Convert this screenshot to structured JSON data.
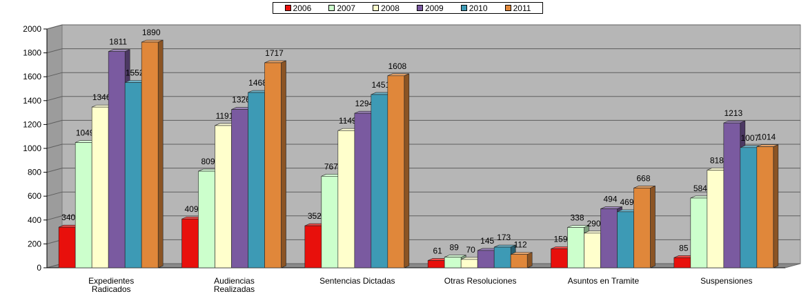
{
  "chart_data": {
    "type": "bar",
    "categories": [
      [
        "Expedientes",
        "Radicados"
      ],
      [
        "Audiencias",
        "Realizadas"
      ],
      [
        "Sentencias Dictadas"
      ],
      [
        "Otras Resoluciones"
      ],
      [
        "Asuntos en Tramite"
      ],
      [
        "Suspensiones"
      ]
    ],
    "series": [
      {
        "name": "2006",
        "color": "#e8100c",
        "values": [
          340,
          409,
          352,
          61,
          159,
          85
        ]
      },
      {
        "name": "2007",
        "color": "#ccffcc",
        "values": [
          1049,
          809,
          767,
          89,
          338,
          584
        ]
      },
      {
        "name": "2008",
        "color": "#ffffcc",
        "values": [
          1346,
          1191,
          1149,
          70,
          290,
          818
        ]
      },
      {
        "name": "2009",
        "color": "#7a5aa0",
        "values": [
          1811,
          1326,
          1294,
          145,
          494,
          1213
        ]
      },
      {
        "name": "2010",
        "color": "#3d9ab5",
        "values": [
          1552,
          1468,
          1451,
          173,
          469,
          1007
        ]
      },
      {
        "name": "2011",
        "color": "#e0873a",
        "values": [
          1890,
          1717,
          1608,
          112,
          668,
          1014
        ]
      }
    ],
    "yticks": [
      0,
      200,
      400,
      600,
      800,
      1000,
      1200,
      1400,
      1600,
      1800,
      2000
    ],
    "ylim": [
      0,
      2000
    ],
    "grid": true,
    "legend_position": "top-center",
    "title": "",
    "xlabel": "",
    "ylabel": ""
  }
}
